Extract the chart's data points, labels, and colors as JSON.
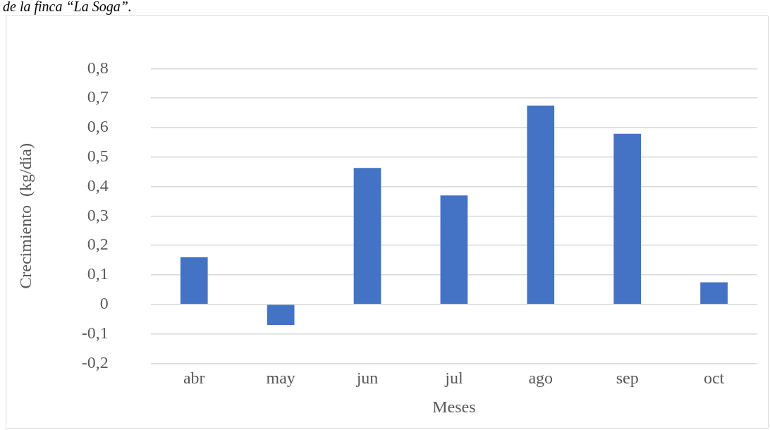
{
  "chart_data": {
    "type": "bar",
    "xlabel": "Meses",
    "ylabel": "Crecimiento  (kg/día)",
    "annotations": [
      "de la finca “La Soga”."
    ],
    "categories": [
      "abr",
      "may",
      "jun",
      "jul",
      "ago",
      "sep",
      "oct"
    ],
    "values": [
      0.16,
      -0.07,
      0.463,
      0.37,
      0.675,
      0.579,
      0.075
    ],
    "color": "#4472c4",
    "ylim": [
      -0.2,
      0.8
    ],
    "yticks": [
      {
        "value": -0.2,
        "label": "-0,2"
      },
      {
        "value": -0.1,
        "label": "-0,1"
      },
      0,
      {
        "value": 0.1,
        "label": "0,1"
      },
      {
        "value": 0.2,
        "label": "0,2"
      },
      {
        "value": 0.3,
        "label": "0,3"
      },
      {
        "value": 0.4,
        "label": "0,4"
      },
      {
        "value": 0.5,
        "label": "0,5"
      },
      {
        "value": 0.6,
        "label": "0,6"
      },
      {
        "value": 0.7,
        "label": "0,7"
      },
      {
        "value": 0.8,
        "label": "0,8"
      }
    ],
    "grid": "y",
    "legend": false
  }
}
